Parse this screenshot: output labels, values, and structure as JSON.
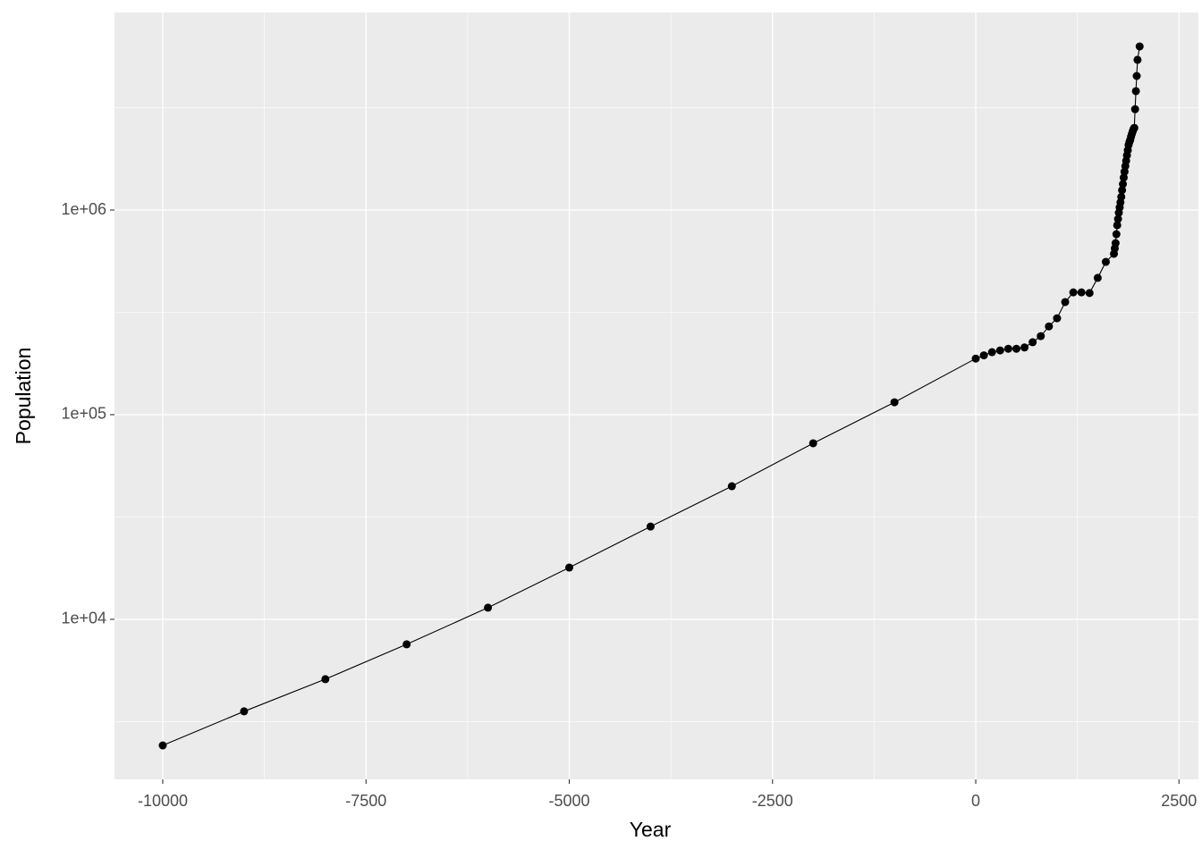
{
  "chart_data": {
    "type": "line",
    "x_label": "Year",
    "y_label": "Population",
    "x": [
      -10000,
      -9000,
      -8000,
      -7000,
      -6000,
      -5000,
      -4000,
      -3000,
      -2000,
      -1000,
      0,
      100,
      200,
      300,
      400,
      500,
      600,
      700,
      800,
      900,
      1000,
      1100,
      1200,
      1300,
      1400,
      1500,
      1600,
      1700,
      1710,
      1720,
      1730,
      1740,
      1750,
      1760,
      1770,
      1780,
      1790,
      1800,
      1810,
      1820,
      1830,
      1840,
      1850,
      1860,
      1870,
      1880,
      1890,
      1900,
      1910,
      1920,
      1930,
      1940,
      1950,
      1960,
      1970,
      1980,
      1990,
      2016
    ],
    "values": [
      2420,
      3550,
      5100,
      7550,
      11400,
      17900,
      28400,
      44700,
      72500,
      115000,
      188000,
      195000,
      202000,
      206000,
      210000,
      210000,
      213000,
      226000,
      242000,
      270000,
      296000,
      355000,
      396000,
      396000,
      393000,
      466000,
      558000,
      611000,
      649000,
      689000,
      762000,
      843000,
      904000,
      970000,
      1030000,
      1090000,
      1160000,
      1250000,
      1340000,
      1440000,
      1540000,
      1640000,
      1740000,
      1850000,
      1960000,
      2080000,
      2150000,
      2200000,
      2280000,
      2350000,
      2420000,
      2480000,
      2520000,
      3110000,
      3810000,
      4520000,
      5420000,
      6300000
    ],
    "color": "#000000",
    "log_y": true,
    "grid": true,
    "xlim": [
      -10594,
      2739
    ],
    "ylim": [
      1652,
      9230000
    ],
    "xticks": [
      -10000,
      -7500,
      -5000,
      -2500,
      0,
      2500
    ],
    "x_minor_ticks": [
      -8750,
      -6250,
      -3750,
      -1250,
      1250
    ],
    "yticks": [
      {
        "value": 10000,
        "label": "1e+04"
      },
      {
        "value": 100000,
        "label": "1e+05"
      },
      {
        "value": 1000000,
        "label": "1e+06"
      }
    ],
    "y_minor_ticks": [
      3162,
      31623,
      316228,
      3162278
    ]
  }
}
